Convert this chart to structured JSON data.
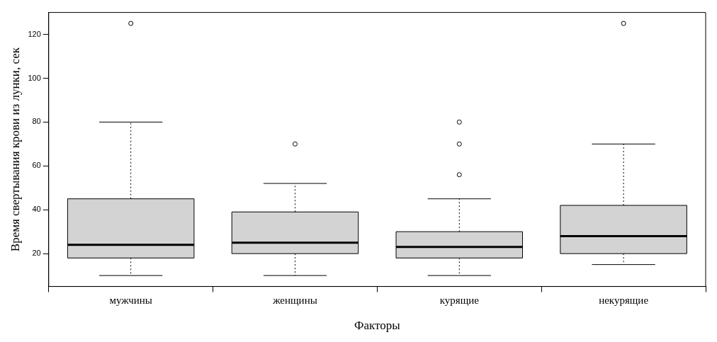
{
  "chart_data": {
    "type": "box",
    "xlabel": "Факторы",
    "ylabel": "Время свертывания крови из лунки, сек",
    "categories": [
      "мужчины",
      "женщины",
      "курящие",
      "некурящие"
    ],
    "color": "#d3d3d3",
    "ylim": [
      5,
      130
    ],
    "yticks": [
      20,
      40,
      60,
      80,
      100,
      120
    ],
    "boxes": [
      {
        "low": 10,
        "q1": 18,
        "median": 24,
        "q3": 45,
        "high": 80,
        "outliers": [
          125
        ]
      },
      {
        "low": 10,
        "q1": 20,
        "median": 25,
        "q3": 39,
        "high": 52,
        "outliers": [
          70
        ]
      },
      {
        "low": 10,
        "q1": 18,
        "median": 23,
        "q3": 30,
        "high": 45,
        "outliers": [
          56,
          70,
          80
        ]
      },
      {
        "low": 15,
        "q1": 20,
        "median": 28,
        "q3": 42,
        "high": 70,
        "outliers": [
          125
        ]
      }
    ]
  }
}
